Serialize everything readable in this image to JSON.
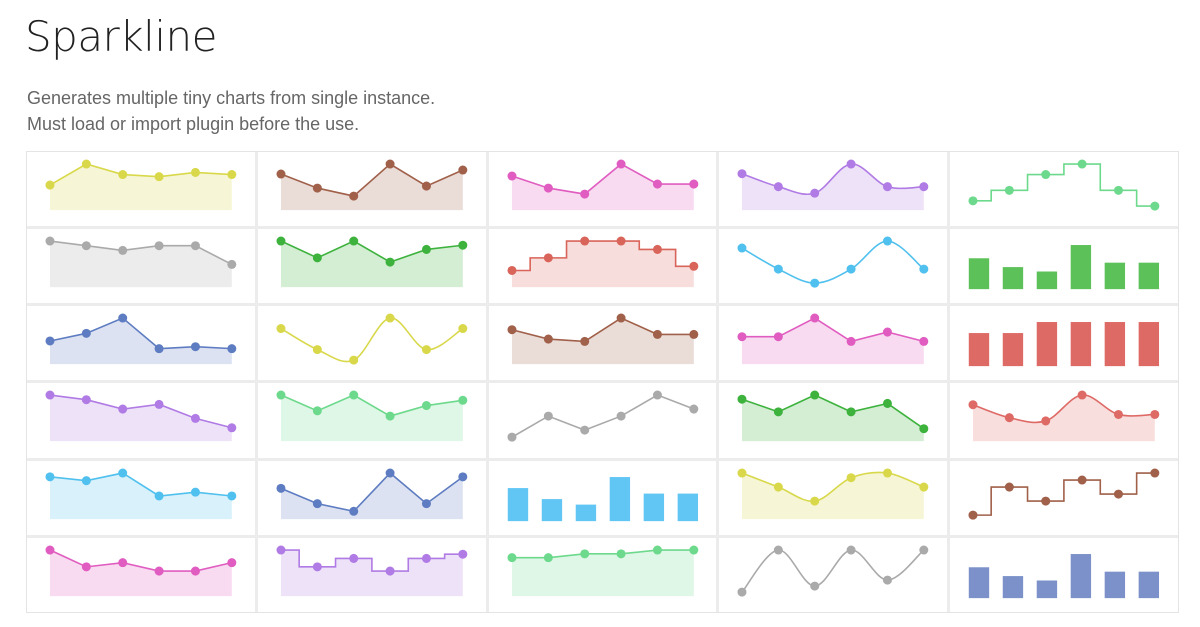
{
  "page": {
    "title": "Sparkline",
    "description_lines": [
      "Generates multiple tiny charts from single instance.",
      "Must load or import plugin before the use."
    ]
  },
  "chart_data": [
    {
      "type": "area",
      "style": "linear",
      "color": "#d8d84a",
      "values": [
        10,
        20,
        15,
        14,
        16,
        15
      ]
    },
    {
      "type": "area",
      "style": "linear",
      "color": "#a0604a",
      "values": [
        16,
        9,
        5,
        21,
        10,
        18
      ]
    },
    {
      "type": "area",
      "style": "linear",
      "color": "#e05cc0",
      "values": [
        15,
        9,
        6,
        21,
        11,
        11
      ]
    },
    {
      "type": "area",
      "style": "spline",
      "color": "#b07be4",
      "values": [
        10,
        6,
        4,
        13,
        6,
        6
      ]
    },
    {
      "type": "line",
      "style": "step",
      "color": "#6dd98c",
      "values": [
        3,
        5,
        8,
        10,
        5,
        2
      ]
    },
    {
      "type": "area",
      "style": "linear",
      "color": "#aaaaaa",
      "values": [
        9,
        8,
        7,
        8,
        8,
        4
      ]
    },
    {
      "type": "area",
      "style": "linear",
      "color": "#3db23d",
      "values": [
        10,
        6,
        10,
        5,
        8,
        9
      ]
    },
    {
      "type": "area",
      "style": "step",
      "color": "#d9645a",
      "values": [
        3,
        6,
        10,
        10,
        8,
        4
      ]
    },
    {
      "type": "line",
      "style": "spline",
      "color": "#50c0ee",
      "values": [
        10,
        7,
        5,
        7,
        11,
        7
      ]
    },
    {
      "type": "bar",
      "color": "#5cc158",
      "values": [
        7,
        5,
        4,
        10,
        6,
        6
      ]
    },
    {
      "type": "area",
      "style": "linear",
      "color": "#5e7cc1",
      "values": [
        10,
        14,
        22,
        6,
        7,
        6
      ]
    },
    {
      "type": "line",
      "style": "spline",
      "color": "#d8d84a",
      "values": [
        9,
        7,
        6,
        10,
        7,
        9
      ]
    },
    {
      "type": "area",
      "style": "linear",
      "color": "#a0604a",
      "values": [
        13,
        9,
        8,
        18,
        11,
        11
      ]
    },
    {
      "type": "area",
      "style": "linear",
      "color": "#e05cc0",
      "values": [
        5,
        5,
        9,
        4,
        6,
        4
      ]
    },
    {
      "type": "bar",
      "color": "#de6a66",
      "values": [
        3,
        3,
        4,
        4,
        4,
        4
      ]
    },
    {
      "type": "area",
      "style": "linear",
      "color": "#b07be4",
      "values": [
        9,
        8,
        6,
        7,
        4,
        2
      ]
    },
    {
      "type": "area",
      "style": "linear",
      "color": "#6dd98c",
      "values": [
        8,
        5,
        8,
        4,
        6,
        7
      ]
    },
    {
      "type": "line",
      "style": "linear",
      "color": "#aaaaaa",
      "values": [
        4,
        7,
        5,
        7,
        10,
        8
      ]
    },
    {
      "type": "area",
      "style": "linear",
      "color": "#3db23d",
      "values": [
        9,
        6,
        10,
        6,
        8,
        2
      ]
    },
    {
      "type": "area",
      "style": "spline",
      "color": "#de6a66",
      "values": [
        10,
        6,
        5,
        13,
        7,
        7
      ]
    },
    {
      "type": "area",
      "style": "linear",
      "color": "#50c0ee",
      "values": [
        10,
        9,
        11,
        5,
        6,
        5
      ]
    },
    {
      "type": "area",
      "style": "linear",
      "color": "#5e7cc1",
      "values": [
        7,
        3,
        1,
        11,
        3,
        10
      ]
    },
    {
      "type": "bar",
      "color": "#62c6f5",
      "values": [
        6,
        4,
        3,
        8,
        5,
        5
      ]
    },
    {
      "type": "area",
      "style": "spline",
      "color": "#d8d84a",
      "values": [
        9,
        6,
        3,
        8,
        9,
        6
      ]
    },
    {
      "type": "line",
      "style": "step",
      "color": "#a0604a",
      "values": [
        4,
        8,
        6,
        9,
        7,
        10
      ]
    },
    {
      "type": "area",
      "style": "linear",
      "color": "#e05cc0",
      "values": [
        10,
        6,
        7,
        5,
        5,
        7
      ]
    },
    {
      "type": "area",
      "style": "step",
      "color": "#b07be4",
      "values": [
        10,
        6,
        8,
        5,
        8,
        9
      ]
    },
    {
      "type": "area",
      "style": "linear",
      "color": "#6dd98c",
      "values": [
        9,
        9,
        10,
        10,
        11,
        11
      ]
    },
    {
      "type": "line",
      "style": "spline",
      "color": "#aaaaaa",
      "values": [
        2,
        9,
        3,
        9,
        4,
        9
      ]
    },
    {
      "type": "bar",
      "color": "#7c91c9",
      "values": [
        7,
        5,
        4,
        10,
        6,
        6
      ]
    }
  ]
}
